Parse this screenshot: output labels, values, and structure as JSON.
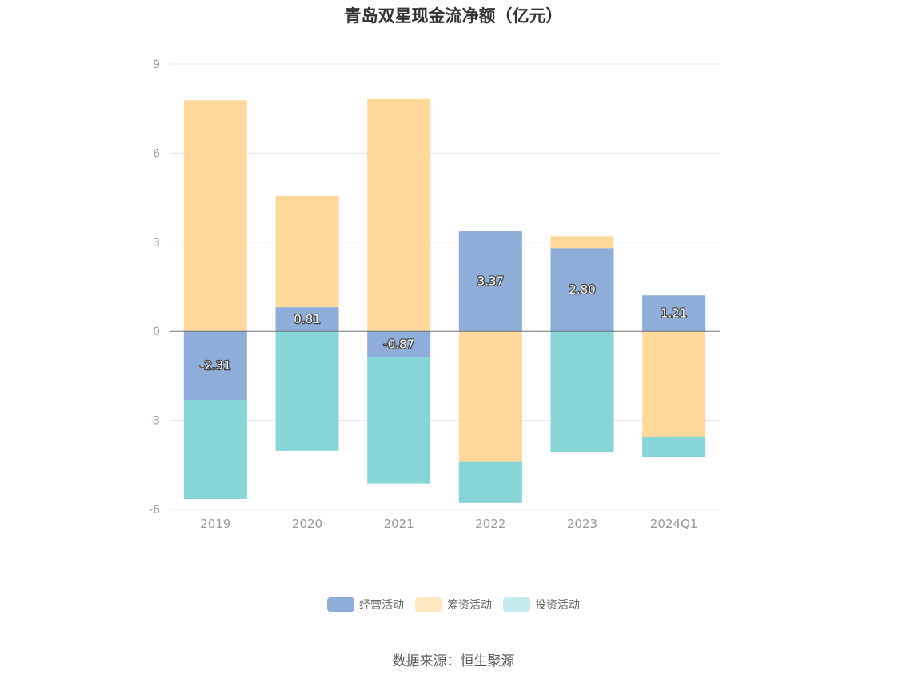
{
  "chart_data": {
    "type": "bar",
    "stacked": true,
    "title": "青岛双星现金流净额（亿元）",
    "categories": [
      "2019",
      "2020",
      "2021",
      "2022",
      "2023",
      "2024Q1"
    ],
    "series": [
      {
        "name": "经营活动",
        "values": [
          -2.31,
          0.81,
          -0.87,
          3.37,
          2.8,
          1.21
        ],
        "color": "#8fadd9",
        "labels": [
          "-2.31",
          "0.81",
          "-0.87",
          "3.37",
          "2.80",
          "1.21"
        ]
      },
      {
        "name": "筹资活动",
        "values": [
          7.78,
          3.75,
          7.82,
          -4.4,
          0.4,
          -3.55
        ],
        "color": "#ffd99c"
      },
      {
        "name": "投资活动",
        "values": [
          -3.34,
          -4.03,
          -4.26,
          -1.38,
          -4.06,
          -0.7
        ],
        "color": "#88d5d8"
      }
    ],
    "legend_colors": [
      "#8fadd9",
      "#ffe7c2",
      "#c3ebed"
    ],
    "ylim": [
      -6,
      9
    ],
    "yticks": [
      "9",
      "6",
      "3",
      "0",
      "-3",
      "-6"
    ],
    "ytick_values": [
      9,
      6,
      3,
      0,
      -3,
      -6
    ],
    "grid": true,
    "legend_position": "bottom"
  },
  "footer": {
    "source": "数据来源：恒生聚源"
  }
}
